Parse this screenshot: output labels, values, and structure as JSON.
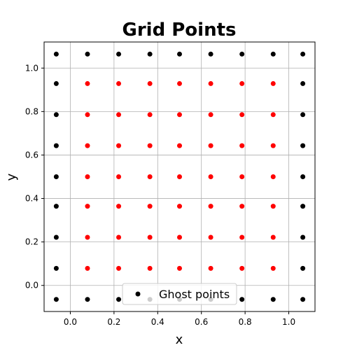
{
  "chart_data": {
    "type": "scatter",
    "title": "Grid Points",
    "xlabel": "x",
    "ylabel": "y",
    "xlim": [
      -0.12,
      1.12
    ],
    "ylim": [
      -0.12,
      1.12
    ],
    "xticks": [
      0.0,
      0.2,
      0.4,
      0.6,
      0.8,
      1.0
    ],
    "yticks": [
      0.0,
      0.2,
      0.4,
      0.6,
      0.8,
      1.0
    ],
    "xtick_labels": [
      "0.0",
      "0.2",
      "0.4",
      "0.6",
      "0.8",
      "1.0"
    ],
    "ytick_labels": [
      "0.0",
      "0.2",
      "0.4",
      "0.6",
      "0.8",
      "1.0"
    ],
    "grid": true,
    "legend_position": "bottom-center",
    "grid_coords": [
      -0.0643,
      0.0786,
      0.2214,
      0.3643,
      0.5,
      0.6429,
      0.7857,
      0.9286,
      1.0643
    ],
    "series": [
      {
        "name": "Ghost points",
        "color": "#000000",
        "role": "boundary points on the outer ring of the 9x9 grid"
      },
      {
        "color": "#ff0000",
        "role": "interior points of the 9x9 grid"
      }
    ],
    "legend_entries": [
      "Ghost points"
    ]
  }
}
